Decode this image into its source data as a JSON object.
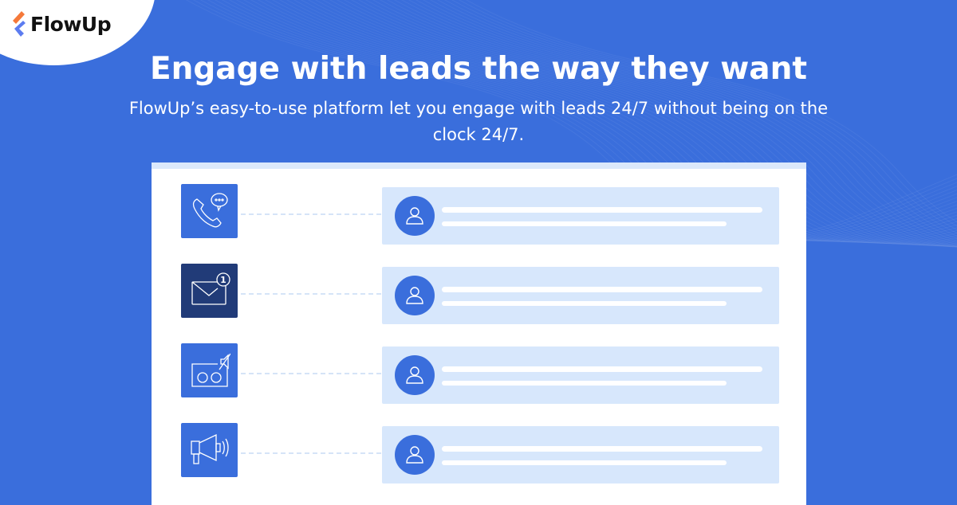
{
  "brand": {
    "name": "FlowUp",
    "colors": {
      "background": "#3a6edc",
      "dark_icon": "#213b78",
      "bubble": "#d7e7fc"
    }
  },
  "headline": "Engage with leads the way they want",
  "subheadline": "FlowUp’s easy-to-use platform let you engage with leads 24/7 without being on the clock 24/7.",
  "channels": [
    {
      "icon": "phone-chat-icon"
    },
    {
      "icon": "email-notification-icon",
      "badge": "1"
    },
    {
      "icon": "voicemail-muted-icon"
    },
    {
      "icon": "megaphone-icon"
    }
  ]
}
